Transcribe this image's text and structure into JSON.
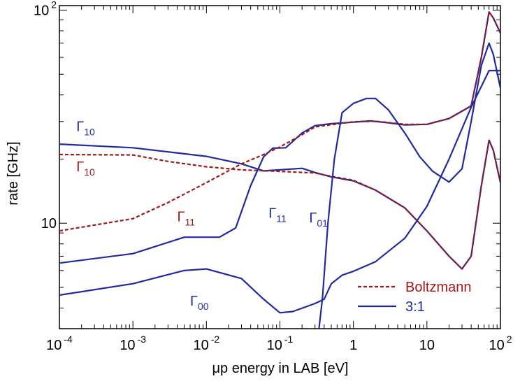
{
  "chart_data": {
    "type": "line",
    "xlabel": "μp energy in LAB [eV]",
    "ylabel": "rate [GHz]",
    "xscale": "log",
    "yscale": "log",
    "xlim": [
      0.0001,
      100
    ],
    "ylim": [
      3.2,
      105
    ],
    "grid": false,
    "legend_position": "bottom-right",
    "x_ticks": [
      {
        "value": 0.0001,
        "base": "10",
        "exp": "-4"
      },
      {
        "value": 0.001,
        "base": "10",
        "exp": "-3"
      },
      {
        "value": 0.01,
        "base": "10",
        "exp": "-2"
      },
      {
        "value": 0.1,
        "base": "10",
        "exp": "-1"
      },
      {
        "value": 1,
        "base": "1",
        "exp": ""
      },
      {
        "value": 10,
        "base": "10",
        "exp": ""
      },
      {
        "value": 100,
        "base": "10",
        "exp": "2"
      }
    ],
    "y_ticks": [
      {
        "value": 10,
        "base": "10",
        "exp": ""
      },
      {
        "value": 100,
        "base": "10",
        "exp": "2"
      }
    ],
    "colors": {
      "blue": "#1f2aa0",
      "red": "#a01818"
    },
    "series": [
      {
        "label_main": "Γ",
        "label_sub": "10",
        "style": "solid",
        "color": "#1f2aa0",
        "points": [
          [
            0.0001,
            23.5
          ],
          [
            0.001,
            22.6
          ],
          [
            0.01,
            20.6
          ],
          [
            0.03,
            19
          ],
          [
            0.06,
            17.6
          ],
          [
            0.1,
            17.8
          ],
          [
            0.2,
            18.1
          ],
          [
            0.3,
            17.3
          ],
          [
            0.5,
            16.5
          ],
          [
            1,
            15.8
          ],
          [
            2,
            14.3
          ],
          [
            5,
            11.8
          ],
          [
            10,
            9.2
          ],
          [
            20,
            7
          ],
          [
            30,
            6.1
          ],
          [
            40,
            7
          ],
          [
            55,
            15
          ],
          [
            70,
            24.5
          ],
          [
            80,
            22
          ],
          [
            100,
            15.5
          ]
        ]
      },
      {
        "label_main": "Γ",
        "label_sub": "10",
        "style": "dashed",
        "color": "#a01818",
        "points": [
          [
            0.0001,
            21
          ],
          [
            0.001,
            20.9
          ],
          [
            0.003,
            19.5
          ],
          [
            0.01,
            18.4
          ],
          [
            0.03,
            17.8
          ],
          [
            0.1,
            17.5
          ],
          [
            0.3,
            17.2
          ],
          [
            0.5,
            16.6
          ],
          [
            1,
            15.9
          ],
          [
            2,
            14.3
          ],
          [
            5,
            11.8
          ],
          [
            10,
            9.2
          ],
          [
            20,
            7
          ],
          [
            30,
            6.1
          ],
          [
            40,
            7
          ],
          [
            55,
            15
          ],
          [
            70,
            24.5
          ],
          [
            80,
            22
          ],
          [
            100,
            15.5
          ]
        ]
      },
      {
        "label_main": "Γ",
        "label_sub": "11",
        "style": "solid",
        "color": "#1f2aa0",
        "points": [
          [
            0.0001,
            6.5
          ],
          [
            0.001,
            7.2
          ],
          [
            0.005,
            8.6
          ],
          [
            0.015,
            8.6
          ],
          [
            0.025,
            9.5
          ],
          [
            0.04,
            15
          ],
          [
            0.06,
            20.5
          ],
          [
            0.08,
            22.5
          ],
          [
            0.12,
            22.6
          ],
          [
            0.2,
            26.5
          ],
          [
            0.3,
            28.7
          ],
          [
            0.5,
            29.3
          ],
          [
            1,
            29.8
          ],
          [
            1.7,
            30.2
          ],
          [
            3,
            29.6
          ],
          [
            5,
            28.9
          ],
          [
            10,
            29.1
          ],
          [
            20,
            31
          ],
          [
            40,
            35.5
          ],
          [
            55,
            60
          ],
          [
            70,
            98
          ],
          [
            80,
            92
          ],
          [
            100,
            78
          ]
        ]
      },
      {
        "label_main": "Γ",
        "label_sub": "11",
        "style": "dashed",
        "color": "#a01818",
        "points": [
          [
            0.0001,
            9.2
          ],
          [
            0.001,
            10.5
          ],
          [
            0.003,
            12.5
          ],
          [
            0.01,
            15.5
          ],
          [
            0.03,
            19
          ],
          [
            0.06,
            21
          ],
          [
            0.1,
            22.8
          ],
          [
            0.2,
            26
          ],
          [
            0.3,
            28.3
          ],
          [
            0.5,
            29
          ],
          [
            1,
            29.9
          ],
          [
            2,
            30.1
          ],
          [
            5,
            29.1
          ],
          [
            10,
            29.1
          ],
          [
            20,
            31
          ],
          [
            40,
            35.5
          ],
          [
            55,
            60
          ],
          [
            70,
            98
          ],
          [
            80,
            92
          ],
          [
            100,
            78
          ]
        ]
      },
      {
        "label_main": "Γ",
        "label_sub": "01",
        "style": "solid",
        "color": "#1f2aa0",
        "points": [
          [
            0.34,
            3.2
          ],
          [
            0.38,
            4.5
          ],
          [
            0.45,
            10
          ],
          [
            0.55,
            20
          ],
          [
            0.7,
            33
          ],
          [
            1,
            36.5
          ],
          [
            1.5,
            38.5
          ],
          [
            2,
            38.5
          ],
          [
            3,
            34
          ],
          [
            5,
            26.5
          ],
          [
            8,
            20.5
          ],
          [
            12,
            17.5
          ],
          [
            20,
            15.6
          ],
          [
            30,
            18
          ],
          [
            40,
            30
          ],
          [
            55,
            55
          ],
          [
            70,
            70
          ],
          [
            80,
            62
          ],
          [
            100,
            43
          ]
        ]
      },
      {
        "label_main": "Γ",
        "label_sub": "00",
        "style": "solid",
        "color": "#1f2aa0",
        "points": [
          [
            0.0001,
            4.6
          ],
          [
            0.001,
            5.2
          ],
          [
            0.005,
            6
          ],
          [
            0.01,
            6.1
          ],
          [
            0.03,
            5.5
          ],
          [
            0.06,
            4.4
          ],
          [
            0.1,
            3.8
          ],
          [
            0.15,
            3.85
          ],
          [
            0.3,
            4.2
          ],
          [
            0.4,
            4.4
          ],
          [
            0.5,
            5.2
          ],
          [
            0.7,
            5.7
          ],
          [
            1,
            5.95
          ],
          [
            2,
            6.6
          ],
          [
            5,
            8.5
          ],
          [
            10,
            12
          ],
          [
            20,
            20
          ],
          [
            40,
            35
          ],
          [
            70,
            52
          ],
          [
            100,
            52
          ]
        ]
      }
    ],
    "annotations": [
      {
        "main": "Γ",
        "sub": "10",
        "color": "#1f2aa0",
        "x": 0.00017,
        "y": 27
      },
      {
        "main": "Γ",
        "sub": "10",
        "color": "#a01818",
        "x": 0.00017,
        "y": 17.5
      },
      {
        "main": "Γ",
        "sub": "11",
        "color": "#a01818",
        "x": 0.004,
        "y": 10.2
      },
      {
        "main": "Γ",
        "sub": "11",
        "color": "#1f2aa0",
        "x": 0.07,
        "y": 10.6
      },
      {
        "main": "Γ",
        "sub": "01",
        "color": "#1f2aa0",
        "x": 0.25,
        "y": 10.1
      },
      {
        "main": "Γ",
        "sub": "00",
        "color": "#1f2aa0",
        "x": 0.006,
        "y": 4.1
      }
    ],
    "legend": [
      {
        "label": "Boltzmann",
        "style": "dashed",
        "color": "#a01818"
      },
      {
        "label": "3:1",
        "style": "solid",
        "color": "#1f2aa0"
      }
    ]
  }
}
